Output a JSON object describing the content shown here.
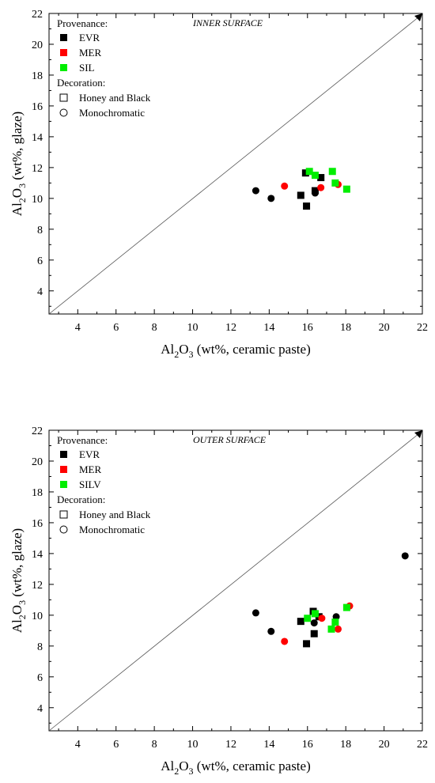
{
  "chart_data": [
    {
      "type": "scatter",
      "panel_label": "INNER SURFACE",
      "xlabel_main": "Al",
      "xlabel_sub1": "2",
      "xlabel_mid": "O",
      "xlabel_sub2": "3",
      "xlabel_tail": " (wt%, ceramic paste)",
      "ylabel_main": "Al",
      "ylabel_sub1": "2",
      "ylabel_mid": "O",
      "ylabel_sub2": "3",
      "ylabel_tail": " (wt%, glaze)",
      "xlim": [
        2.5,
        22
      ],
      "ylim": [
        2.5,
        22
      ],
      "x_ticks": [
        4,
        6,
        8,
        10,
        12,
        14,
        16,
        18,
        20,
        22
      ],
      "y_ticks": [
        4,
        6,
        8,
        10,
        12,
        14,
        16,
        18,
        20,
        22
      ],
      "diagonal": true,
      "legend": {
        "provenance_title": "Provenance:",
        "provenance": [
          {
            "label": "EVR",
            "color": "#000000"
          },
          {
            "label": "MER",
            "color": "#ff0000"
          },
          {
            "label": "SIL",
            "color": "#00ee00"
          }
        ],
        "decoration_title": "Decoration:",
        "decoration": [
          {
            "label": "Honey and Black",
            "marker": "square"
          },
          {
            "label": "Monochromatic",
            "marker": "circle"
          }
        ]
      },
      "series": [
        {
          "name": "EVR",
          "color": "#000000",
          "marker": "square",
          "points": [
            [
              15.9,
              11.65
            ],
            [
              15.65,
              10.2
            ],
            [
              15.95,
              9.5
            ],
            [
              16.4,
              10.5
            ],
            [
              16.7,
              11.35
            ]
          ]
        },
        {
          "name": "EVR",
          "color": "#000000",
          "marker": "circle",
          "points": [
            [
              13.3,
              10.5
            ],
            [
              14.1,
              10.0
            ],
            [
              16.4,
              10.35
            ]
          ]
        },
        {
          "name": "MER",
          "color": "#ff0000",
          "marker": "circle",
          "points": [
            [
              14.8,
              10.8
            ],
            [
              16.7,
              10.7
            ],
            [
              17.6,
              10.9
            ]
          ]
        },
        {
          "name": "SIL",
          "color": "#00ee00",
          "marker": "square",
          "points": [
            [
              16.1,
              11.75
            ],
            [
              16.4,
              11.5
            ],
            [
              17.3,
              11.75
            ],
            [
              17.45,
              11.0
            ],
            [
              18.05,
              10.6
            ]
          ]
        }
      ]
    },
    {
      "type": "scatter",
      "panel_label": "OUTER SURFACE",
      "xlabel_main": "Al",
      "xlabel_sub1": "2",
      "xlabel_mid": "O",
      "xlabel_sub2": "3",
      "xlabel_tail": " (wt%, ceramic paste)",
      "ylabel_main": "Al",
      "ylabel_sub1": "2",
      "ylabel_mid": "O",
      "ylabel_sub2": "3",
      "ylabel_tail": " (wt%, glaze)",
      "xlim": [
        2.5,
        22
      ],
      "ylim": [
        2.5,
        22
      ],
      "x_ticks": [
        4,
        6,
        8,
        10,
        12,
        14,
        16,
        18,
        20,
        22
      ],
      "y_ticks": [
        4,
        6,
        8,
        10,
        12,
        14,
        16,
        18,
        20,
        22
      ],
      "diagonal": true,
      "legend": {
        "provenance_title": "Provenance:",
        "provenance": [
          {
            "label": "EVR",
            "color": "#000000"
          },
          {
            "label": "MER",
            "color": "#ff0000"
          },
          {
            "label": "SILV",
            "color": "#00ee00"
          }
        ],
        "decoration_title": "Decoration:",
        "decoration": [
          {
            "label": "Honey and Black",
            "marker": "square"
          },
          {
            "label": "Monochromatic",
            "marker": "circle"
          }
        ]
      },
      "series": [
        {
          "name": "EVR",
          "color": "#000000",
          "marker": "square",
          "points": [
            [
              15.65,
              9.6
            ],
            [
              15.95,
              8.15
            ],
            [
              16.3,
              10.25
            ],
            [
              16.35,
              8.8
            ],
            [
              16.6,
              9.9
            ]
          ]
        },
        {
          "name": "EVR",
          "color": "#000000",
          "marker": "circle",
          "points": [
            [
              13.3,
              10.15
            ],
            [
              14.1,
              8.95
            ],
            [
              16.35,
              9.5
            ],
            [
              17.5,
              9.9
            ],
            [
              21.1,
              13.85
            ]
          ]
        },
        {
          "name": "MER",
          "color": "#ff0000",
          "marker": "circle",
          "points": [
            [
              14.8,
              8.3
            ],
            [
              16.75,
              9.8
            ],
            [
              17.6,
              9.1
            ],
            [
              18.2,
              10.6
            ]
          ]
        },
        {
          "name": "SILV",
          "color": "#00ee00",
          "marker": "square",
          "points": [
            [
              16.0,
              9.8
            ],
            [
              16.4,
              10.1
            ],
            [
              17.25,
              9.1
            ],
            [
              17.45,
              9.55
            ],
            [
              18.05,
              10.5
            ]
          ]
        }
      ]
    }
  ]
}
